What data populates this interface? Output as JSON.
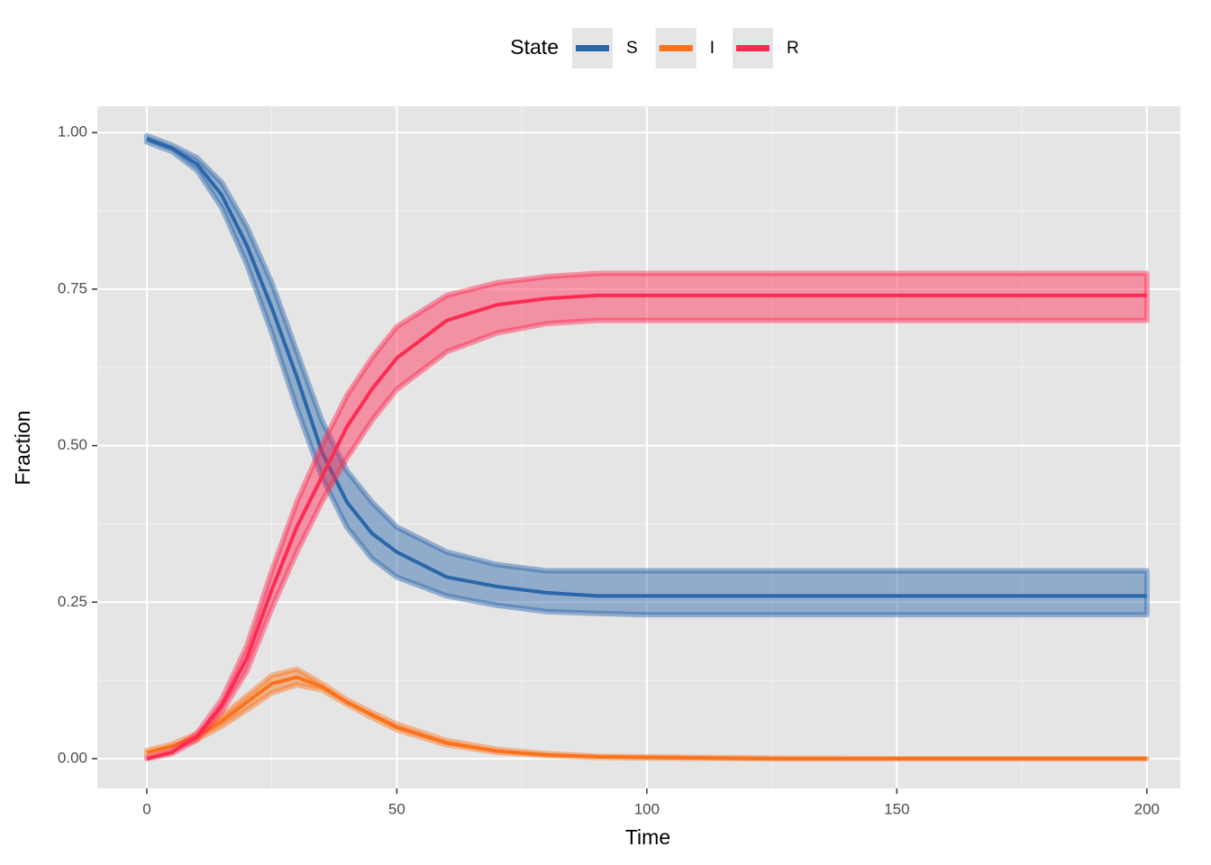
{
  "chart_data": {
    "type": "line",
    "legend_title": "State",
    "legend_position": "top",
    "x_label": "Time",
    "y_label": "Fraction",
    "grid": true,
    "x": [
      0,
      5,
      10,
      15,
      20,
      25,
      30,
      35,
      40,
      45,
      50,
      60,
      70,
      80,
      90,
      100,
      125,
      150,
      175,
      200
    ],
    "series": [
      {
        "name": "S",
        "color": "#2a67aa",
        "values": [
          0.99,
          0.975,
          0.95,
          0.9,
          0.82,
          0.72,
          0.61,
          0.49,
          0.41,
          0.36,
          0.33,
          0.29,
          0.275,
          0.265,
          0.26,
          0.26,
          0.26,
          0.26,
          0.26,
          0.26
        ],
        "lower": [
          0.985,
          0.97,
          0.94,
          0.88,
          0.79,
          0.68,
          0.56,
          0.45,
          0.37,
          0.32,
          0.29,
          0.26,
          0.245,
          0.235,
          0.232,
          0.23,
          0.23,
          0.23,
          0.23,
          0.23
        ],
        "upper": [
          0.995,
          0.98,
          0.96,
          0.92,
          0.85,
          0.76,
          0.65,
          0.54,
          0.46,
          0.41,
          0.37,
          0.33,
          0.31,
          0.3,
          0.3,
          0.3,
          0.3,
          0.3,
          0.3,
          0.3
        ]
      },
      {
        "name": "I",
        "color": "#fa731c",
        "values": [
          0.01,
          0.02,
          0.035,
          0.06,
          0.09,
          0.12,
          0.13,
          0.115,
          0.09,
          0.07,
          0.05,
          0.025,
          0.012,
          0.006,
          0.003,
          0.002,
          0,
          0,
          0,
          0
        ],
        "lower": [
          0.008,
          0.017,
          0.03,
          0.052,
          0.078,
          0.105,
          0.118,
          0.11,
          0.087,
          0.066,
          0.046,
          0.022,
          0.01,
          0.005,
          0.002,
          0.001,
          0,
          0,
          0,
          0
        ],
        "upper": [
          0.013,
          0.023,
          0.04,
          0.068,
          0.1,
          0.133,
          0.143,
          0.12,
          0.094,
          0.074,
          0.055,
          0.029,
          0.015,
          0.008,
          0.004,
          0.003,
          0.001,
          0,
          0,
          0
        ]
      },
      {
        "name": "R",
        "color": "#ff2a52",
        "values": [
          0,
          0.01,
          0.035,
          0.085,
          0.16,
          0.27,
          0.37,
          0.45,
          0.53,
          0.59,
          0.64,
          0.7,
          0.725,
          0.735,
          0.74,
          0.74,
          0.74,
          0.74,
          0.74,
          0.74
        ],
        "lower": [
          0,
          0.008,
          0.03,
          0.075,
          0.14,
          0.24,
          0.33,
          0.41,
          0.48,
          0.54,
          0.59,
          0.65,
          0.68,
          0.695,
          0.7,
          0.7,
          0.7,
          0.7,
          0.7,
          0.7
        ],
        "upper": [
          0.002,
          0.013,
          0.04,
          0.095,
          0.18,
          0.3,
          0.41,
          0.5,
          0.58,
          0.64,
          0.69,
          0.74,
          0.76,
          0.77,
          0.775,
          0.775,
          0.775,
          0.775,
          0.775,
          0.775
        ]
      }
    ],
    "xlim": [
      -9.9,
      206.7
    ],
    "ylim": [
      -0.0475,
      1.042
    ],
    "xticks": [
      0,
      50,
      100,
      150,
      200
    ],
    "xminor": [
      25,
      75,
      125,
      175
    ],
    "yticks": [
      {
        "value": 0,
        "label": "0.00"
      },
      {
        "value": 0.25,
        "label": "0.25"
      },
      {
        "value": 0.5,
        "label": "0.50"
      },
      {
        "value": 0.75,
        "label": "0.75"
      },
      {
        "value": 1,
        "label": "1.00"
      }
    ],
    "yminor": [
      0.125,
      0.375,
      0.625,
      0.875
    ]
  }
}
